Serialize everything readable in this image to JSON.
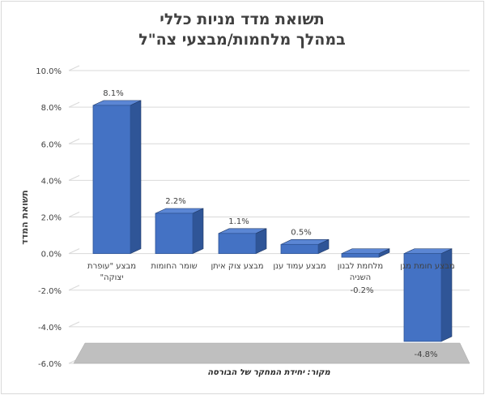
{
  "chart_data": {
    "type": "bar",
    "title_lines": [
      "תשואת מדד מניות כללי",
      "במהלך מלחמות/מבצעי צה\"ל"
    ],
    "ylabel": "תשואת המדד",
    "xlabel": "",
    "source_note": "מקור: יחידת המחקר של הבורסה",
    "categories": [
      "מבצע \"עופרת יצוקה\"",
      "שומר החומות",
      "מבצע צוק איתן",
      "מבצע עמוד ענן",
      "מלחמת לבנון השניה",
      "מבצע חומת מגן"
    ],
    "category_lines": [
      [
        "מבצע \"עופרת",
        "יצוקה\""
      ],
      [
        "שומר החומות"
      ],
      [
        "מבצע צוק איתן"
      ],
      [
        "מבצע עמוד ענן"
      ],
      [
        "מלחמת לבנון",
        "השניה"
      ],
      [
        "מבצע חומת מגן"
      ]
    ],
    "values": [
      8.1,
      2.2,
      1.1,
      0.5,
      -0.2,
      -4.8
    ],
    "data_labels": [
      "8.1%",
      "2.2%",
      "1.1%",
      "0.5%",
      "-0.2%",
      "-4.8%"
    ],
    "ylim": [
      -6,
      10
    ],
    "yticks": [
      10,
      8,
      6,
      4,
      2,
      0,
      -2,
      -4,
      -6
    ],
    "ytick_labels": [
      "10.0%",
      "8.0%",
      "6.0%",
      "4.0%",
      "2.0%",
      "0.0%",
      "-2.0%",
      "-4.0%",
      "-6.0%"
    ],
    "grid": true,
    "legend": "none",
    "colors": {
      "bar_front": "#4472c4",
      "bar_side": "#2f5597",
      "bar_top": "#5b86d4",
      "floor": "#bfbfbf",
      "grid": "#d9d9d9",
      "text": "#404040"
    }
  }
}
